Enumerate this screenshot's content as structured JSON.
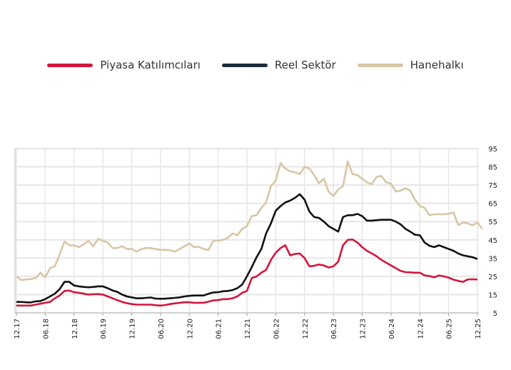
{
  "chart_data": {
    "type": "line",
    "title": "",
    "xlabel": "",
    "ylabel": "",
    "ylim": [
      5,
      95
    ],
    "yticks": [
      5,
      15,
      25,
      35,
      45,
      55,
      65,
      75,
      85,
      95
    ],
    "x_tick_labels": [
      "12.17",
      "06.18",
      "12.18",
      "06.19",
      "12.19",
      "06.20",
      "12.20",
      "06.21",
      "12.21",
      "06.22",
      "12.22",
      "06.23",
      "12.23",
      "06.24",
      "12.24",
      "06.25",
      "12.25"
    ],
    "x_start": "12.17",
    "x_frequency": "monthly",
    "grid": true,
    "legend_placement": "top-center",
    "series": [
      {
        "name": "Piyasa Katılımcıları",
        "color": "#d2163c",
        "values": [
          9,
          9,
          9,
          9,
          9.5,
          10,
          10.5,
          11,
          13,
          14.5,
          17,
          17.2,
          16.3,
          16,
          15.5,
          15,
          15.2,
          15.3,
          15,
          14,
          13,
          12,
          11,
          10.3,
          9.8,
          9.5,
          9.5,
          9.5,
          9.5,
          9.2,
          9,
          9.3,
          9.8,
          10.2,
          10.5,
          10.8,
          10.8,
          10.5,
          10.5,
          10.5,
          11.2,
          11.8,
          12,
          12.5,
          12.5,
          13,
          14,
          16,
          17,
          24,
          25,
          27,
          28.5,
          34,
          38,
          40.5,
          42,
          36.5,
          37.3,
          37.5,
          35,
          30.5,
          30.8,
          31.5,
          31,
          29.8,
          30.5,
          33,
          42,
          45,
          45.2,
          43.5,
          41,
          39,
          37.5,
          36,
          34,
          32.5,
          31,
          29.5,
          28,
          27.3,
          27.2,
          27,
          27,
          25.5,
          25.2,
          24.5,
          25.5,
          25,
          24.3,
          23.2,
          22.5,
          22,
          23.3,
          23.4,
          23.3
        ]
      },
      {
        "name": "Reel Sektör",
        "color": "#111111",
        "legend_color": "#1b2b3c",
        "values": [
          11,
          11,
          10.8,
          10.7,
          11.3,
          11.5,
          12.5,
          14,
          15.5,
          18,
          22,
          22,
          20,
          19.5,
          19.2,
          19,
          19.2,
          19.5,
          19.5,
          18.5,
          17.3,
          16.5,
          15,
          14,
          13.5,
          13,
          13,
          13.2,
          13.4,
          12.8,
          12.7,
          12.8,
          13,
          13.2,
          13.5,
          14,
          14.3,
          14.5,
          14.5,
          14.5,
          15.5,
          16.2,
          16.3,
          16.8,
          17,
          17.5,
          18.5,
          20.5,
          25,
          30,
          35.5,
          40,
          48.5,
          54,
          61,
          63.5,
          65.5,
          66.5,
          68,
          70,
          67,
          60.5,
          57.5,
          57,
          55,
          52.5,
          51,
          49.5,
          57.5,
          58.5,
          58.5,
          59.2,
          58,
          55.5,
          55.5,
          55.8,
          56,
          56,
          56,
          55,
          53.5,
          51,
          49.5,
          47.8,
          47.5,
          43.5,
          41.8,
          41,
          42,
          41,
          40,
          39,
          37.5,
          36.5,
          36,
          35.5,
          34.5
        ]
      },
      {
        "name": "Hanehalkı",
        "color": "#d8c6a5",
        "values": [
          25,
          23,
          23.3,
          23.5,
          24,
          27,
          24.5,
          29.5,
          30.5,
          37,
          44,
          42,
          42,
          41,
          42.5,
          44.5,
          41.5,
          45.5,
          44.5,
          43.5,
          40.5,
          40.5,
          41.5,
          40,
          40,
          38.5,
          40,
          40.5,
          40.5,
          40,
          39.5,
          39.5,
          39.3,
          38.5,
          40,
          41.5,
          43,
          41,
          41.2,
          40,
          39.5,
          44.5,
          44.5,
          45,
          46,
          48.5,
          47.5,
          51,
          52.5,
          58,
          58.5,
          62.5,
          65.5,
          74.5,
          77.5,
          87,
          84,
          82.5,
          82,
          81,
          85,
          84,
          80.5,
          76,
          78.5,
          71.5,
          69,
          72.5,
          74.5,
          88,
          81,
          80.5,
          78.5,
          76.5,
          75.5,
          79.5,
          80,
          76.5,
          75.8,
          71.5,
          72,
          73.2,
          72,
          67,
          63.5,
          62.5,
          58.5,
          59,
          59,
          59,
          59.2,
          60,
          53,
          54.5,
          54,
          53,
          54.5,
          51
        ]
      }
    ]
  }
}
